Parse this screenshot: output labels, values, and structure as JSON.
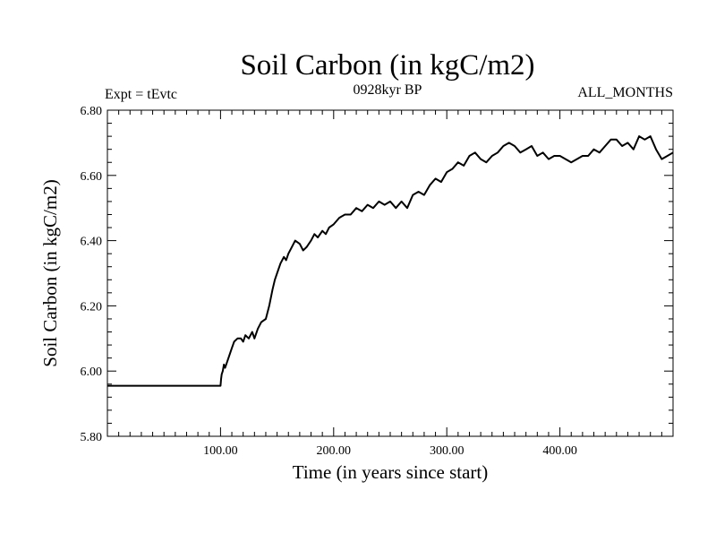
{
  "chart_data": {
    "type": "line",
    "title": "Soil Carbon (in kgC/m2)",
    "subtitle_left": "Expt = tEvtc",
    "subtitle_center": "0928kyr BP",
    "subtitle_right": "ALL_MONTHS",
    "xlabel": "Time (in years since start)",
    "ylabel": "Soil Carbon (in kgC/m2)",
    "xlim": [
      0,
      500
    ],
    "ylim": [
      5.8,
      6.8
    ],
    "x_ticks": [
      100,
      200,
      300,
      400
    ],
    "x_tick_labels": [
      "100.00",
      "200.00",
      "300.00",
      "400.00"
    ],
    "y_ticks": [
      5.8,
      6.0,
      6.2,
      6.4,
      6.6,
      6.8
    ],
    "y_tick_labels": [
      "5.80",
      "6.00",
      "6.20",
      "6.40",
      "6.60",
      "6.80"
    ],
    "series": [
      {
        "name": "Soil Carbon",
        "x": [
          0,
          100,
          100.5,
          101,
          102,
          103,
          104,
          106,
          108,
          110,
          112,
          115,
          118,
          120,
          122,
          125,
          128,
          130,
          133,
          136,
          140,
          143,
          146,
          148,
          150,
          153,
          156,
          158,
          160,
          163,
          166,
          170,
          173,
          176,
          180,
          183,
          186,
          190,
          193,
          196,
          200,
          205,
          210,
          215,
          220,
          225,
          230,
          235,
          240,
          245,
          250,
          255,
          260,
          265,
          270,
          275,
          280,
          285,
          290,
          295,
          300,
          305,
          310,
          315,
          320,
          325,
          330,
          335,
          340,
          345,
          350,
          355,
          360,
          365,
          370,
          375,
          380,
          385,
          390,
          395,
          400,
          405,
          410,
          415,
          420,
          425,
          430,
          435,
          440,
          445,
          450,
          455,
          460,
          465,
          470,
          475,
          480,
          485,
          490,
          495,
          500
        ],
        "values": [
          5.955,
          5.955,
          5.975,
          5.99,
          6.0,
          6.02,
          6.01,
          6.03,
          6.05,
          6.07,
          6.09,
          6.1,
          6.1,
          6.09,
          6.11,
          6.1,
          6.12,
          6.1,
          6.13,
          6.15,
          6.16,
          6.2,
          6.25,
          6.28,
          6.3,
          6.33,
          6.35,
          6.34,
          6.36,
          6.38,
          6.4,
          6.39,
          6.37,
          6.38,
          6.4,
          6.42,
          6.41,
          6.43,
          6.42,
          6.44,
          6.45,
          6.47,
          6.48,
          6.48,
          6.5,
          6.49,
          6.51,
          6.5,
          6.52,
          6.51,
          6.52,
          6.5,
          6.52,
          6.5,
          6.54,
          6.55,
          6.54,
          6.57,
          6.59,
          6.58,
          6.61,
          6.62,
          6.64,
          6.63,
          6.66,
          6.67,
          6.65,
          6.64,
          6.66,
          6.67,
          6.69,
          6.7,
          6.69,
          6.67,
          6.68,
          6.69,
          6.66,
          6.67,
          6.65,
          6.66,
          6.66,
          6.65,
          6.64,
          6.65,
          6.66,
          6.66,
          6.68,
          6.67,
          6.69,
          6.71,
          6.71,
          6.69,
          6.7,
          6.68,
          6.72,
          6.71,
          6.72,
          6.68,
          6.65,
          6.66,
          6.67
        ]
      }
    ]
  }
}
